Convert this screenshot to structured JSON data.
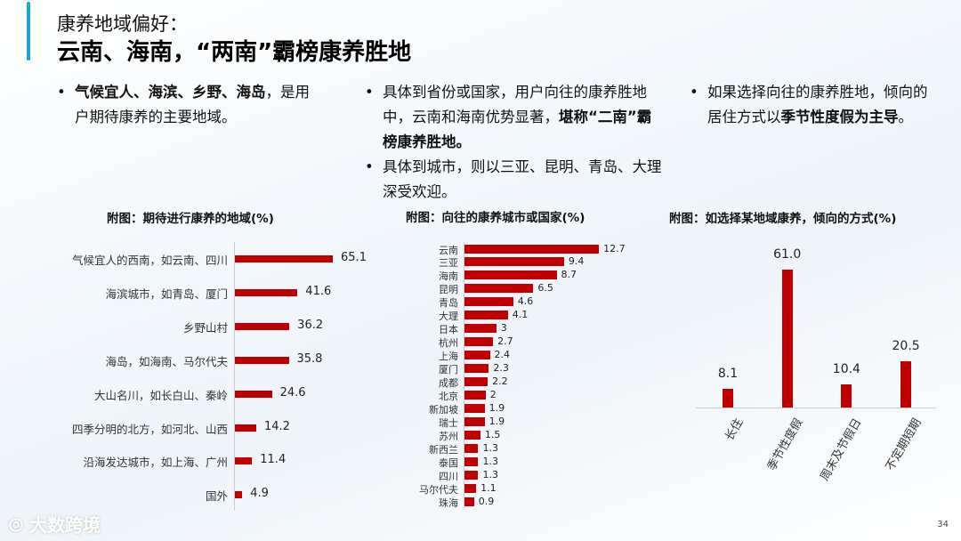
{
  "header": {
    "subtitle": "康养地域偏好：",
    "title": "云南、海南，“两南”霸榜康养胜地"
  },
  "bullets": {
    "col1": [
      {
        "bold": "气候宜人、海滨、乡野、海岛",
        "rest": "，是用户期待康养的主要地域。"
      }
    ],
    "col2": [
      {
        "pre": "具体到省份或国家，用户向往的康养胜地中，云南和海南优势显著，",
        "bold": "堪称“二南”霸榜康养胜地。"
      },
      {
        "pre": "具体到城市，则以三亚、昆明、青岛、大理深受欢迎。",
        "bold": ""
      }
    ],
    "col3": [
      {
        "pre": "如果选择向往的康养胜地，倾向的居住方式以",
        "bold": "季节性度假为主导",
        "post": "。"
      }
    ]
  },
  "chart_data": [
    {
      "type": "bar",
      "orientation": "horizontal",
      "title": "附图：期待进行康养的地域(%)",
      "categories": [
        "气候宜人的西南，如云南、四川",
        "海滨城市，如青岛、厦门",
        "乡野山村",
        "海岛，如海南、马尔代夫",
        "大山名川，如长白山、秦岭",
        "四季分明的北方，如河北、山西",
        "沿海发达城市，如上海、广州",
        "国外"
      ],
      "values": [
        65.1,
        41.6,
        36.2,
        35.8,
        24.6,
        14.2,
        11.4,
        4.9
      ],
      "color": "#c00000"
    },
    {
      "type": "bar",
      "orientation": "horizontal",
      "title": "附图：向往的康养城市或国家(%)",
      "categories": [
        "云南",
        "三亚",
        "海南",
        "昆明",
        "青岛",
        "大理",
        "日本",
        "杭州",
        "上海",
        "厦门",
        "成都",
        "北京",
        "新加坡",
        "瑞士",
        "苏州",
        "新西兰",
        "泰国",
        "四川",
        "马尔代夫",
        "珠海"
      ],
      "values": [
        12.7,
        9.4,
        8.7,
        6.5,
        4.6,
        4.1,
        3.0,
        2.7,
        2.4,
        2.3,
        2.2,
        2.0,
        1.9,
        1.9,
        1.5,
        1.3,
        1.3,
        1.3,
        1.1,
        0.9
      ],
      "color": "#c00000"
    },
    {
      "type": "bar",
      "orientation": "vertical",
      "title": "附图：如选择某地域康养，倾向的方式(%)",
      "categories": [
        "长住",
        "季节性度假",
        "周末及节假日",
        "不定期短期"
      ],
      "values": [
        8.1,
        61.0,
        10.4,
        20.5
      ],
      "color": "#c00000"
    }
  ],
  "footer": {
    "logo": "大数跨境",
    "page": "34"
  }
}
